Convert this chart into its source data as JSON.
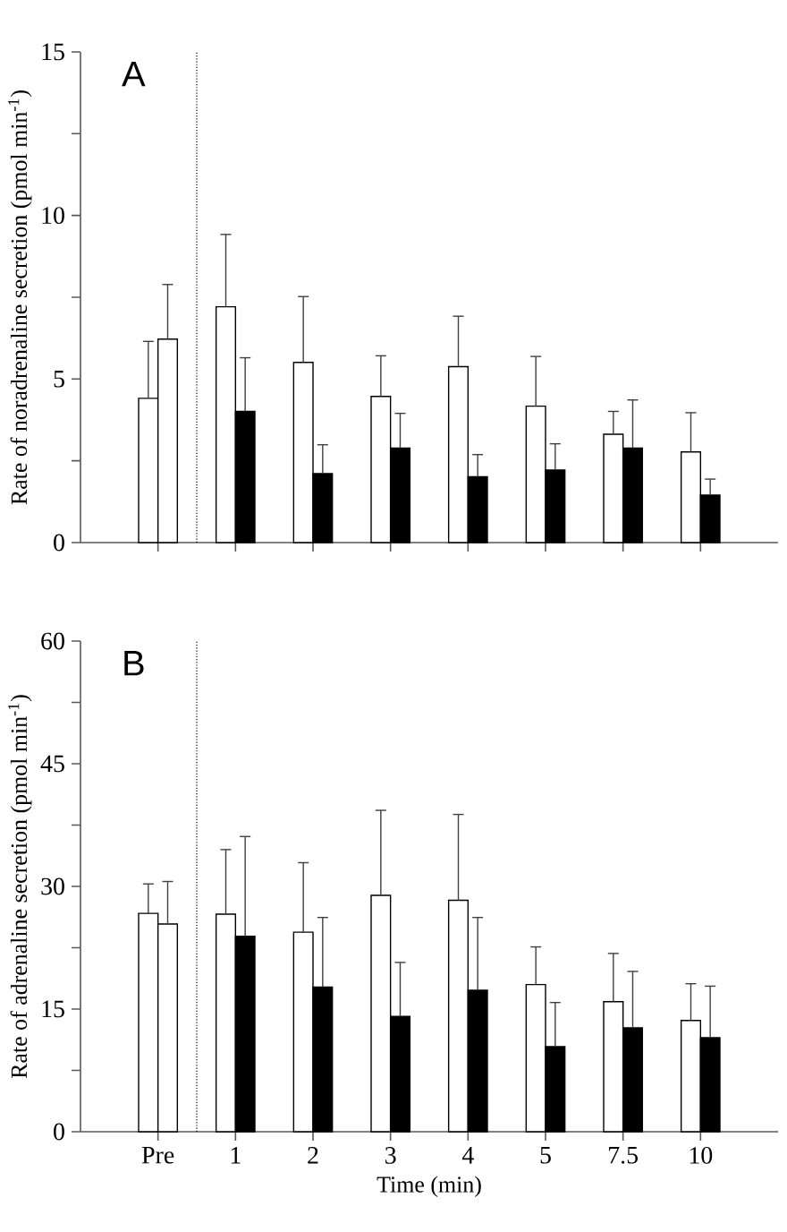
{
  "chart_data": [
    {
      "type": "bar",
      "title": "A",
      "ylabel": "Rate of noradrenaline secretion (pmol min$^{-1}$)",
      "categories": [
        null,
        null,
        null,
        null,
        null,
        null,
        null,
        null
      ],
      "series": [
        {
          "color": "#ffffff",
          "values": [
            4.41,
            7.21,
            5.51,
            4.47,
            5.38,
            4.17,
            3.31,
            2.77
          ],
          "errors": [
            [
              4.41,
              6.15
            ],
            [
              7.21,
              9.42
            ],
            [
              5.51,
              7.52
            ],
            [
              4.47,
              5.71
            ],
            [
              5.38,
              6.92
            ],
            [
              4.17,
              5.69
            ],
            [
              3.31,
              4.01
            ],
            [
              2.77,
              3.97
            ]
          ]
        },
        {
          "colors": [
            "#ffffff",
            "#000000",
            "#000000",
            "#000000",
            "#000000",
            "#000000",
            "#000000",
            "#000000"
          ],
          "values": [
            6.22,
            4.01,
            2.11,
            2.89,
            2.01,
            2.22,
            2.89,
            1.45
          ],
          "errors": [
            [
              6.22,
              7.89
            ],
            [
              4.01,
              5.65
            ],
            [
              2.11,
              2.99
            ],
            [
              2.89,
              3.95
            ],
            [
              2.01,
              2.69
            ],
            [
              2.22,
              3.02
            ],
            [
              2.89,
              4.36
            ],
            [
              1.45,
              1.94
            ]
          ]
        }
      ],
      "ylim": [
        0,
        15
      ],
      "yticks": [
        0,
        {
          "value": 2.5,
          "label": null
        },
        5,
        {
          "value": 7.5,
          "label": null
        },
        10,
        {
          "value": 12.5,
          "label": null
        },
        15
      ],
      "grid": false
    },
    {
      "type": "bar",
      "title": "B",
      "ylabel": "Rate of adrenaline secretion (pmol min$^{-1}$)",
      "xlabel": "Time (min)",
      "categories": [
        "Pre",
        "1",
        "2",
        "3",
        "4",
        "5",
        "7.5",
        "10"
      ],
      "series": [
        {
          "color": "#ffffff",
          "values": [
            26.7,
            26.6,
            24.4,
            28.9,
            28.3,
            18.0,
            15.9,
            13.6
          ],
          "errors": [
            [
              26.7,
              30.3
            ],
            [
              26.6,
              34.5
            ],
            [
              24.4,
              32.9
            ],
            [
              28.9,
              39.3
            ],
            [
              28.3,
              38.8
            ],
            [
              18.0,
              22.6
            ],
            [
              15.9,
              21.8
            ],
            [
              13.6,
              18.1
            ]
          ]
        },
        {
          "colors": [
            "#ffffff",
            "#000000",
            "#000000",
            "#000000",
            "#000000",
            "#000000",
            "#000000",
            "#000000"
          ],
          "values": [
            25.4,
            23.9,
            17.7,
            14.1,
            17.3,
            10.4,
            12.7,
            11.5
          ],
          "errors": [
            [
              25.4,
              30.6
            ],
            [
              23.9,
              36.1
            ],
            [
              17.7,
              26.2
            ],
            [
              14.1,
              20.7
            ],
            [
              17.3,
              26.2
            ],
            [
              10.4,
              15.8
            ],
            [
              12.7,
              19.6
            ],
            [
              11.5,
              17.8
            ]
          ]
        }
      ],
      "ylim": [
        0,
        60
      ],
      "yticks": [
        0,
        {
          "value": 7.5,
          "label": null
        },
        15,
        {
          "value": 22.5,
          "label": null
        },
        30,
        {
          "value": 37.5,
          "label": null
        },
        45,
        {
          "value": 52.5,
          "label": null
        },
        60
      ]
    }
  ]
}
